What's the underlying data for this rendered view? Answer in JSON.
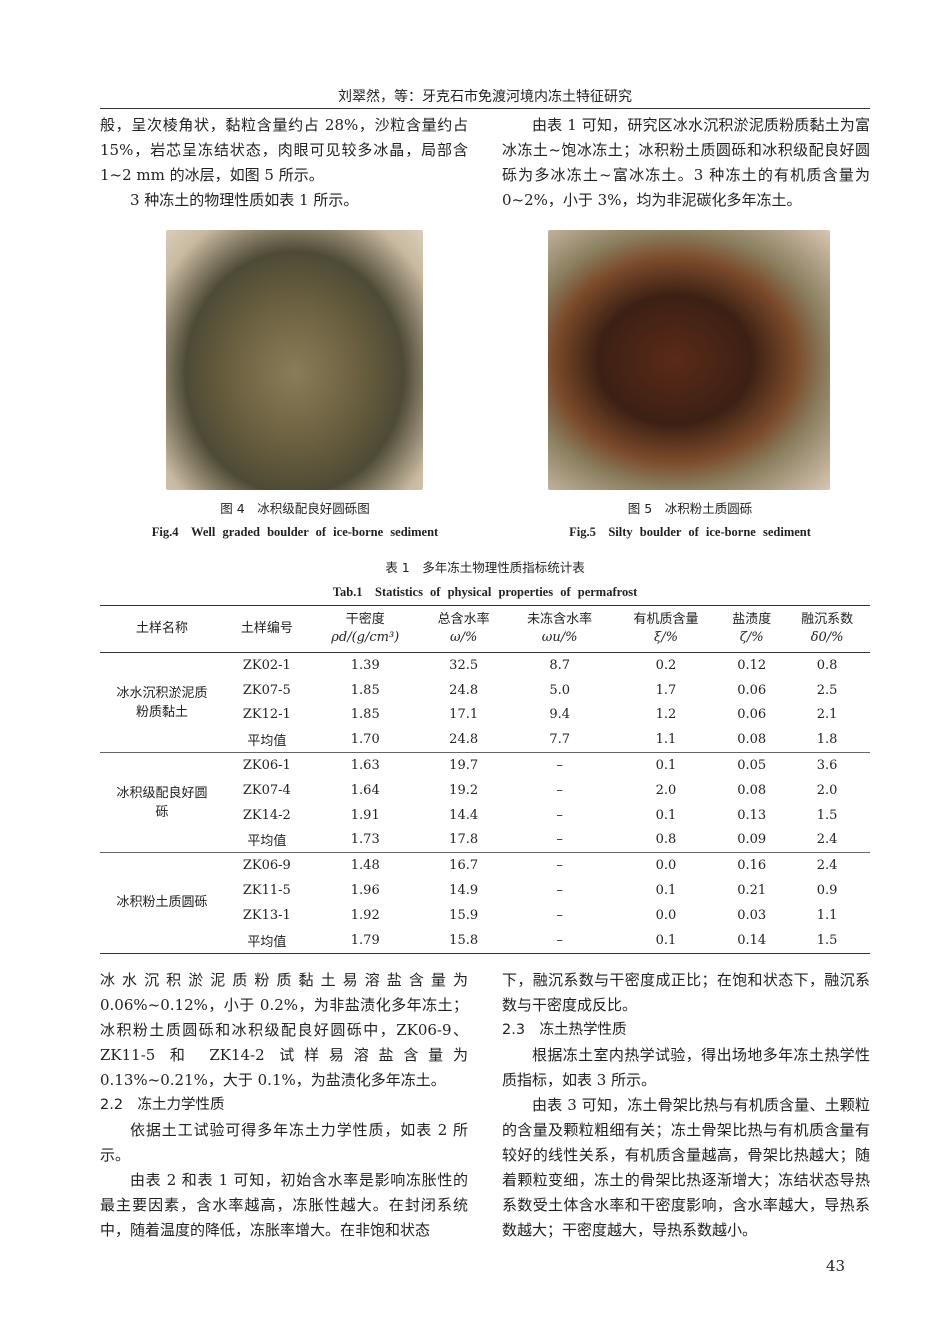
{
  "header": "刘翠然，等：牙克石市免渡河境内冻土特征研究",
  "left_top": [
    "般，呈次棱角状，黏粒含量约占 28%，沙粒含量约占 15%，岩芯呈冻结状态，肉眼可见较多冰晶，局部含 1~2 mm 的冰层，如图 5 所示。",
    "3 种冻土的物理性质如表 1 所示。"
  ],
  "right_top": [
    "由表 1 可知，研究区冰水沉积淤泥质粉质黏土为富冰冻土~饱冰冻土；冰积粉土质圆砾和冰积级配良好圆砾为多冰冻土~富冰冻土。3 种冻土的有机质含量为 0~2%，小于 3%，均为非泥碳化多年冻土。"
  ],
  "fig4": {
    "cn": "图 4　冰积级配良好圆砾图",
    "en": "Fig.4　Well graded boulder of ice-borne sediment"
  },
  "fig5": {
    "cn": "图 5　冰积粉土质圆砾",
    "en": "Fig.5　Silty boulder of ice-borne sediment"
  },
  "table": {
    "title_cn": "表 1　多年冻土物理性质指标统计表",
    "title_en": "Tab.1　Statistics of physical properties of permafrost",
    "headers": [
      [
        "土样名称",
        ""
      ],
      [
        "土样编号",
        ""
      ],
      [
        "干密度",
        "ρd/(g/cm³)"
      ],
      [
        "总含水率",
        "ω/%"
      ],
      [
        "未冻含水率",
        "ωu/%"
      ],
      [
        "有机质含量",
        "ξ/%"
      ],
      [
        "盐渍度",
        "ζ/%"
      ],
      [
        "融沉系数",
        "δ0/%"
      ]
    ],
    "groups": [
      {
        "name": "冰水沉积淤泥质粉质黏土",
        "rows": [
          [
            "ZK02-1",
            "1.39",
            "32.5",
            "8.7",
            "0.2",
            "0.12",
            "0.8"
          ],
          [
            "ZK07-5",
            "1.85",
            "24.8",
            "5.0",
            "1.7",
            "0.06",
            "2.5"
          ],
          [
            "ZK12-1",
            "1.85",
            "17.1",
            "9.4",
            "1.2",
            "0.06",
            "2.1"
          ],
          [
            "平均值",
            "1.70",
            "24.8",
            "7.7",
            "1.1",
            "0.08",
            "1.8"
          ]
        ]
      },
      {
        "name": "冰积级配良好圆砾",
        "rows": [
          [
            "ZK06-1",
            "1.63",
            "19.7",
            "–",
            "0.1",
            "0.05",
            "3.6"
          ],
          [
            "ZK07-4",
            "1.64",
            "19.2",
            "–",
            "2.0",
            "0.08",
            "2.0"
          ],
          [
            "ZK14-2",
            "1.91",
            "14.4",
            "–",
            "0.1",
            "0.13",
            "1.5"
          ],
          [
            "平均值",
            "1.73",
            "17.8",
            "–",
            "0.8",
            "0.09",
            "2.4"
          ]
        ]
      },
      {
        "name": "冰积粉土质圆砾",
        "rows": [
          [
            "ZK06-9",
            "1.48",
            "16.7",
            "–",
            "0.0",
            "0.16",
            "2.4"
          ],
          [
            "ZK11-5",
            "1.96",
            "14.9",
            "–",
            "0.1",
            "0.21",
            "0.9"
          ],
          [
            "ZK13-1",
            "1.92",
            "15.9",
            "–",
            "0.0",
            "0.03",
            "1.1"
          ],
          [
            "平均值",
            "1.79",
            "15.8",
            "–",
            "0.1",
            "0.14",
            "1.5"
          ]
        ]
      }
    ]
  },
  "left_bottom": [
    {
      "t": "p",
      "text": "冰水沉积淤泥质粉质黏土易溶盐含量为 0.06%~0.12%，小于 0.2%，为非盐渍化多年冻土；冰积粉土质圆砾和冰积级配良好圆砾中，ZK06-9、ZK11-5 和 ZK14-2 试样易溶盐含量为 0.13%~0.21%，大于 0.1%，为盐渍化多年冻土。"
    },
    {
      "t": "h",
      "text": "2.2　冻土力学性质"
    },
    {
      "t": "i",
      "text": "依据土工试验可得多年冻土力学性质，如表 2 所示。"
    },
    {
      "t": "i",
      "text": "由表 2 和表 1 可知，初始含水率是影响冻胀性的最主要因素，含水率越高，冻胀性越大。在封闭系统中，随着温度的降低，冻胀率增大。在非饱和状态"
    }
  ],
  "right_bottom": [
    {
      "t": "p",
      "text": "下，融沉系数与干密度成正比；在饱和状态下，融沉系数与干密度成反比。"
    },
    {
      "t": "h",
      "text": "2.3　冻土热学性质"
    },
    {
      "t": "i",
      "text": "根据冻土室内热学试验，得出场地多年冻土热学性质指标，如表 3 所示。"
    },
    {
      "t": "i",
      "text": "由表 3 可知，冻土骨架比热与有机质含量、土颗粒的含量及颗粒粗细有关；冻土骨架比热与有机质含量有较好的线性关系，有机质含量越高，骨架比热越大；随着颗粒变细，冻土的骨架比热逐渐增大；冻结状态导热系数受土体含水率和干密度影响，含水率越大，导热系数越大；干密度越大，导热系数越小。"
    }
  ],
  "page_number": "43"
}
